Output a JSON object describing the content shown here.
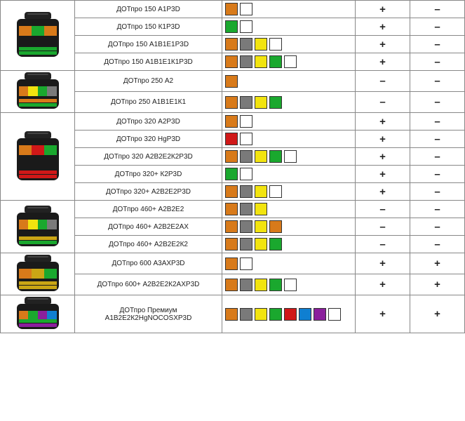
{
  "marks": {
    "plus": "+",
    "minus": "–"
  },
  "groups": [
    {
      "image": {
        "stripe_top": "#1aa82e",
        "stripe_bottom": "#1aa82e",
        "label_segs": [
          "#d87a1a",
          "#1aa82e",
          "#d87a1a"
        ]
      },
      "rows": [
        {
          "name": "ДОТпро 150 А1P3D",
          "colors": [
            "#d87a1a",
            "#ffffff"
          ],
          "c1": "plus",
          "c2": "minus"
        },
        {
          "name": "ДОТпро 150 К1P3D",
          "colors": [
            "#1aa82e",
            "#ffffff"
          ],
          "c1": "plus",
          "c2": "minus"
        },
        {
          "name": "ДОТпро 150 А1В1Е1P3D",
          "colors": [
            "#d87a1a",
            "#7a7a7a",
            "#f2e40f",
            "#ffffff"
          ],
          "c1": "plus",
          "c2": "minus"
        },
        {
          "name": "ДОТпро 150 А1В1Е1К1P3D",
          "colors": [
            "#d87a1a",
            "#7a7a7a",
            "#f2e40f",
            "#1aa82e",
            "#ffffff"
          ],
          "c1": "plus",
          "c2": "minus"
        }
      ]
    },
    {
      "image": {
        "stripe_top": "#d87a1a",
        "stripe_bottom": "#1aa82e",
        "label_segs": [
          "#d87a1a",
          "#f2e40f",
          "#1aa82e",
          "#7a7a7a"
        ]
      },
      "rows": [
        {
          "name": "ДОТпро 250 А2",
          "colors": [
            "#d87a1a"
          ],
          "c1": "minus",
          "c2": "minus"
        },
        {
          "name": "ДОТпро 250 А1В1Е1К1",
          "colors": [
            "#d87a1a",
            "#7a7a7a",
            "#f2e40f",
            "#1aa82e"
          ],
          "c1": "minus",
          "c2": "minus"
        }
      ]
    },
    {
      "image": {
        "stripe_top": "#d01818",
        "stripe_bottom": "#d01818",
        "label_segs": [
          "#d87a1a",
          "#d01818",
          "#1aa82e"
        ]
      },
      "rows": [
        {
          "name": "ДОТпро 320 А2P3D",
          "colors": [
            "#d87a1a",
            "#ffffff"
          ],
          "c1": "plus",
          "c2": "minus"
        },
        {
          "name": "ДОТпро 320 HgP3D",
          "colors": [
            "#d01818",
            "#ffffff"
          ],
          "c1": "plus",
          "c2": "minus"
        },
        {
          "name": "ДОТпро 320 А2В2Е2К2P3D",
          "colors": [
            "#d87a1a",
            "#7a7a7a",
            "#f2e40f",
            "#1aa82e",
            "#ffffff"
          ],
          "c1": "plus",
          "c2": "minus"
        },
        {
          "name": "ДОТпро 320+ К2P3D",
          "colors": [
            "#1aa82e",
            "#ffffff"
          ],
          "c1": "plus",
          "c2": "minus"
        },
        {
          "name": "ДОТпро 320+ А2В2Е2P3D",
          "colors": [
            "#d87a1a",
            "#7a7a7a",
            "#f2e40f",
            "#ffffff"
          ],
          "c1": "plus",
          "c2": "minus"
        }
      ]
    },
    {
      "image": {
        "stripe_top": "#caa615",
        "stripe_bottom": "#1aa82e",
        "label_segs": [
          "#d87a1a",
          "#f2e40f",
          "#1aa82e",
          "#7a7a7a"
        ]
      },
      "rows": [
        {
          "name": "ДОТпро 460+ А2В2Е2",
          "colors": [
            "#d87a1a",
            "#7a7a7a",
            "#f2e40f"
          ],
          "c1": "minus",
          "c2": "minus"
        },
        {
          "name": "ДОТпро 460+ А2В2Е2АХ",
          "colors": [
            "#d87a1a",
            "#7a7a7a",
            "#f2e40f",
            "#d87a1a"
          ],
          "c1": "minus",
          "c2": "minus"
        },
        {
          "name": "ДОТпро 460+ А2В2Е2К2",
          "colors": [
            "#d87a1a",
            "#7a7a7a",
            "#f2e40f",
            "#1aa82e"
          ],
          "c1": "minus",
          "c2": "minus"
        }
      ]
    },
    {
      "image": {
        "stripe_top": "#caa615",
        "stripe_bottom": "#caa615",
        "label_segs": [
          "#d87a1a",
          "#caa615",
          "#1aa82e"
        ]
      },
      "rows": [
        {
          "name": "ДОТпро 600 А3АХP3D",
          "colors": [
            "#d87a1a",
            "#ffffff"
          ],
          "c1": "plus",
          "c2": "plus"
        },
        {
          "name": "ДОТпро 600+ А2В2Е2К2АХP3D",
          "colors": [
            "#d87a1a",
            "#7a7a7a",
            "#f2e40f",
            "#1aa82e",
            "#ffffff"
          ],
          "c1": "plus",
          "c2": "plus"
        }
      ]
    },
    {
      "image": {
        "stripe_top": "#1aa82e",
        "stripe_bottom": "#8a1f9c",
        "label_segs": [
          "#d87a1a",
          "#1aa82e",
          "#8a1f9c",
          "#0f7fd1"
        ]
      },
      "rows": [
        {
          "name": "ДОТпро Премиум А1В2Е2К2HgNOCOSXP3D",
          "colors": [
            "#d87a1a",
            "#7a7a7a",
            "#f2e40f",
            "#1aa82e",
            "#d01818",
            "#0f7fd1",
            "#8a1f9c",
            "#ffffff"
          ],
          "c1": "plus",
          "c2": "plus"
        }
      ]
    }
  ]
}
